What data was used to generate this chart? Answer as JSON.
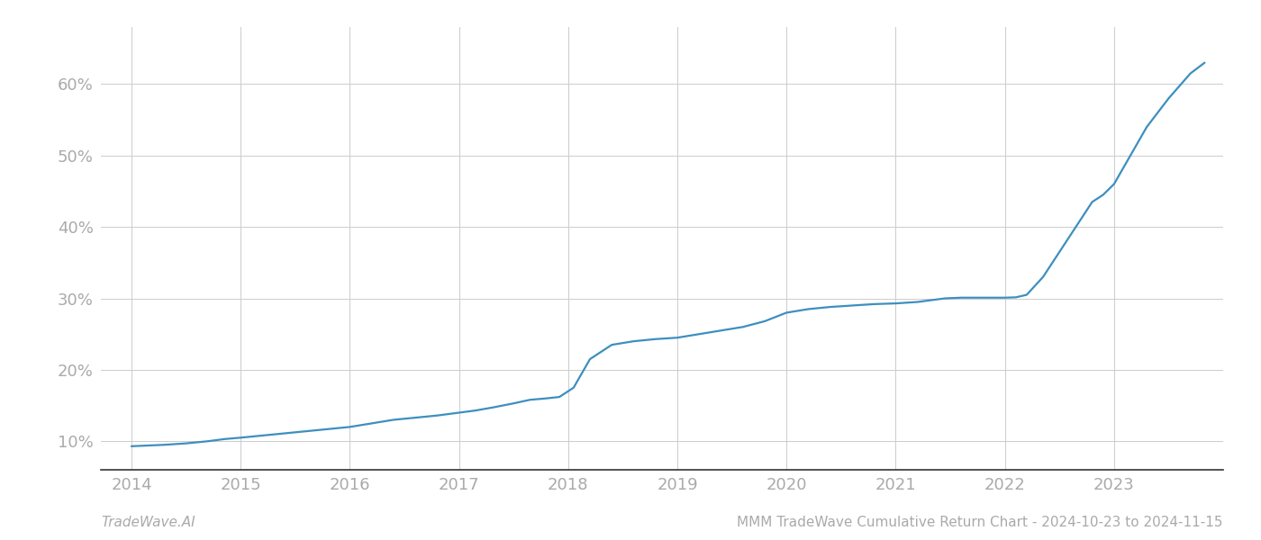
{
  "x_values": [
    2014.0,
    2014.15,
    2014.3,
    2014.5,
    2014.7,
    2014.85,
    2015.0,
    2015.2,
    2015.4,
    2015.6,
    2015.8,
    2016.0,
    2016.2,
    2016.4,
    2016.6,
    2016.8,
    2017.0,
    2017.15,
    2017.3,
    2017.5,
    2017.65,
    2017.8,
    2017.92,
    2018.05,
    2018.2,
    2018.4,
    2018.6,
    2018.8,
    2019.0,
    2019.2,
    2019.4,
    2019.6,
    2019.8,
    2020.0,
    2020.2,
    2020.4,
    2020.6,
    2020.8,
    2021.0,
    2021.2,
    2021.35,
    2021.45,
    2021.6,
    2021.8,
    2022.0,
    2022.1,
    2022.2,
    2022.35,
    2022.5,
    2022.65,
    2022.8,
    2022.9,
    2023.0,
    2023.15,
    2023.3,
    2023.5,
    2023.7,
    2023.83
  ],
  "y_values": [
    9.3,
    9.4,
    9.5,
    9.7,
    10.0,
    10.3,
    10.5,
    10.8,
    11.1,
    11.4,
    11.7,
    12.0,
    12.5,
    13.0,
    13.3,
    13.6,
    14.0,
    14.3,
    14.7,
    15.3,
    15.8,
    16.0,
    16.2,
    17.5,
    21.5,
    23.5,
    24.0,
    24.3,
    24.5,
    25.0,
    25.5,
    26.0,
    26.8,
    28.0,
    28.5,
    28.8,
    29.0,
    29.2,
    29.3,
    29.5,
    29.8,
    30.0,
    30.1,
    30.1,
    30.1,
    30.15,
    30.5,
    33.0,
    36.5,
    40.0,
    43.5,
    44.5,
    46.0,
    50.0,
    54.0,
    58.0,
    61.5,
    63.0
  ],
  "line_color": "#3d8fbf",
  "line_width": 1.6,
  "background_color": "#ffffff",
  "grid_color": "#cccccc",
  "xlim": [
    2013.72,
    2024.0
  ],
  "ylim": [
    6,
    68
  ],
  "xticks": [
    2014,
    2015,
    2016,
    2017,
    2018,
    2019,
    2020,
    2021,
    2022,
    2023
  ],
  "yticks": [
    10,
    20,
    30,
    40,
    50,
    60
  ],
  "footer_left": "TradeWave.AI",
  "footer_right": "MMM TradeWave Cumulative Return Chart - 2024-10-23 to 2024-11-15",
  "footer_color": "#aaaaaa",
  "footer_fontsize": 11,
  "tick_fontsize": 13,
  "tick_color": "#aaaaaa"
}
